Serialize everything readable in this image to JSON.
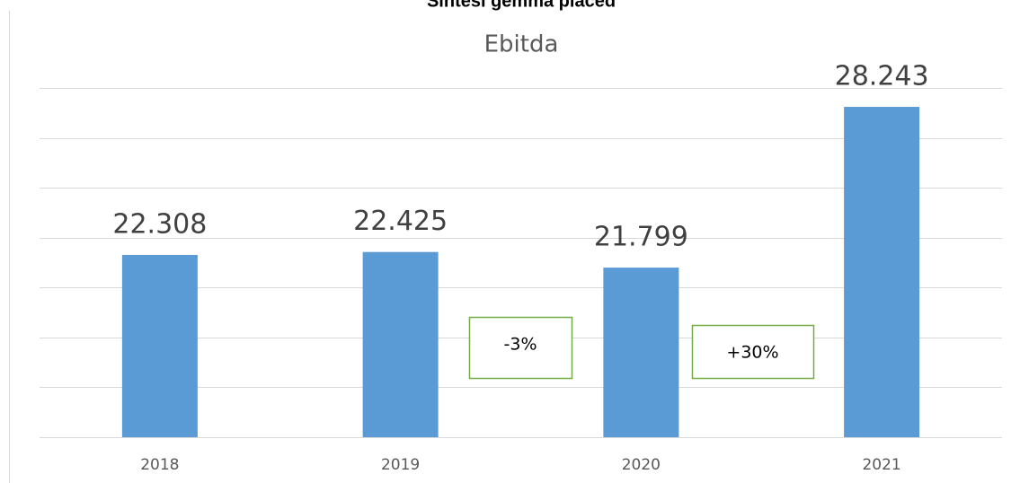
{
  "header": "Sintesi gemma placed",
  "chart_data": {
    "type": "bar",
    "title": "Ebitda",
    "categories": [
      "2018",
      "2019",
      "2020",
      "2021"
    ],
    "values": [
      22.308,
      22.425,
      21.799,
      28.243
    ],
    "color": "#5b9bd5",
    "ylim": [
      15,
      29
    ],
    "yticks": [
      15,
      17,
      19,
      21,
      23,
      25,
      27,
      29
    ],
    "grid": true,
    "annotations": [
      "-3%",
      "+30%"
    ],
    "annotation_color": "#70ad47"
  }
}
